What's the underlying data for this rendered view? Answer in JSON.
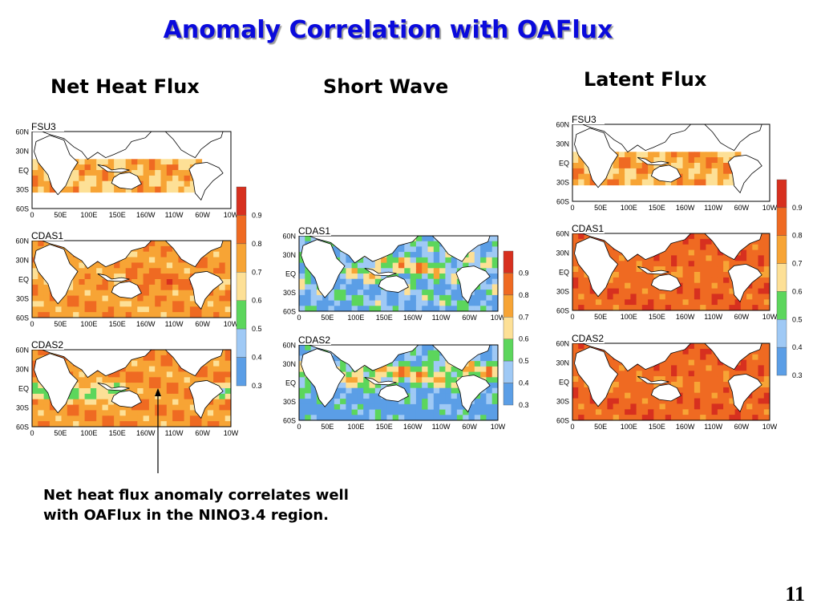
{
  "slide": {
    "title": "Anomaly Correlation with OAFlux",
    "page_number": "11",
    "note_lines": [
      "Net heat flux anomaly correlates well",
      "with OAFlux in the NINO3.4 region."
    ]
  },
  "columns": [
    {
      "heading": "Net Heat Flux",
      "panels": [
        "FSU3",
        "CDAS1",
        "CDAS2"
      ]
    },
    {
      "heading": "Short Wave",
      "panels": [
        "CDAS1",
        "CDAS2"
      ]
    },
    {
      "heading": "Latent Flux",
      "panels": [
        "FSU3",
        "CDAS1",
        "CDAS2"
      ]
    }
  ],
  "axes": {
    "lat_ticks": [
      "60N",
      "30N",
      "EQ",
      "30S",
      "60S"
    ],
    "lon_ticks": [
      "0",
      "50E",
      "100E",
      "150E",
      "160W",
      "110W",
      "60W",
      "10W"
    ]
  },
  "colorbar": {
    "labels": [
      "0.9",
      "0.8",
      "0.7",
      "0.6",
      "0.5",
      "0.4",
      "0.3"
    ],
    "colors": [
      "#d7301f",
      "#ef6a22",
      "#f7a435",
      "#fde096",
      "#5cd65c",
      "#9fc9f5",
      "#5b9ee6"
    ]
  }
}
